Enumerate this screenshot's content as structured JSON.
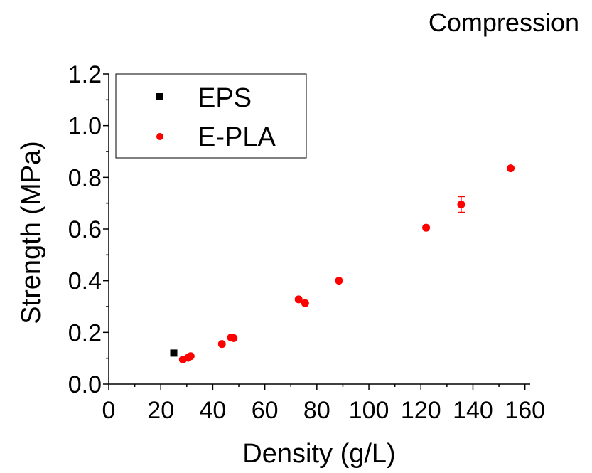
{
  "chart_data": {
    "type": "scatter",
    "title": "Compression",
    "xlabel": "Density (g/L)",
    "ylabel": "Strength (MPa)",
    "xlim": [
      0,
      162
    ],
    "ylim": [
      0,
      1.2
    ],
    "x_ticks": [
      0,
      20,
      40,
      60,
      80,
      100,
      120,
      140,
      160
    ],
    "x_tick_labels": [
      "0",
      "20",
      "40",
      "60",
      "80",
      "100",
      "120",
      "140",
      "160"
    ],
    "y_ticks": [
      0,
      0.2,
      0.4,
      0.6,
      0.8,
      1.0,
      1.2
    ],
    "y_tick_labels": [
      "0.0",
      "0.2",
      "0.4",
      "0.6",
      "0.8",
      "1.0",
      "1.2"
    ],
    "grid": false,
    "legend_position": "top-left",
    "series": [
      {
        "name": "EPS",
        "marker": "square",
        "color": "#000000",
        "points": [
          {
            "x": 25,
            "y": 0.12
          }
        ]
      },
      {
        "name": "E-PLA",
        "marker": "circle",
        "color": "#ff0000",
        "points": [
          {
            "x": 28.5,
            "y": 0.095
          },
          {
            "x": 30.5,
            "y": 0.102
          },
          {
            "x": 31.5,
            "y": 0.108
          },
          {
            "x": 43.5,
            "y": 0.155
          },
          {
            "x": 47,
            "y": 0.18
          },
          {
            "x": 48,
            "y": 0.178
          },
          {
            "x": 73,
            "y": 0.328
          },
          {
            "x": 75.5,
            "y": 0.313
          },
          {
            "x": 88.5,
            "y": 0.4
          },
          {
            "x": 122,
            "y": 0.605
          },
          {
            "x": 135.5,
            "y": 0.695,
            "err": 0.03
          },
          {
            "x": 154.5,
            "y": 0.835
          }
        ]
      }
    ]
  }
}
